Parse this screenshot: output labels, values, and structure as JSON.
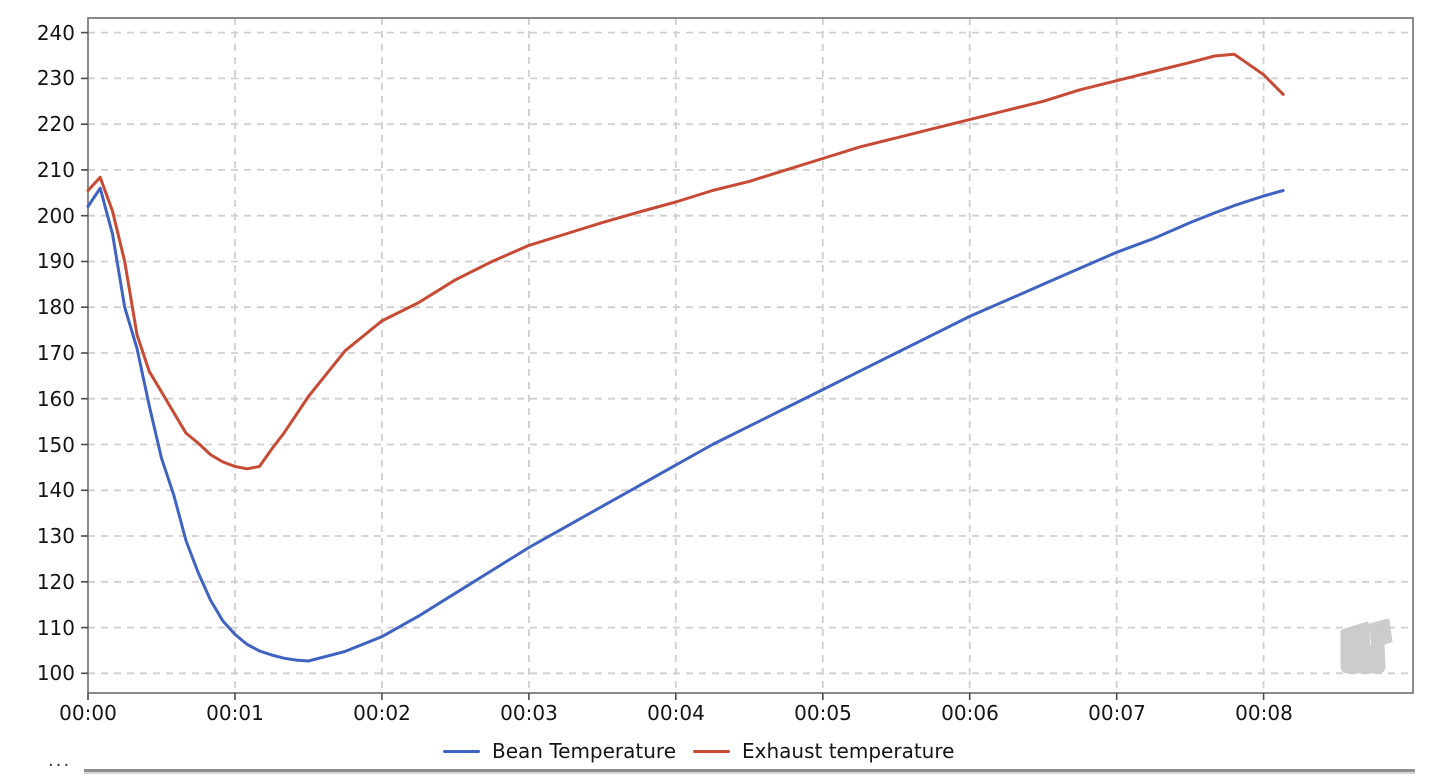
{
  "chart_data": {
    "type": "line",
    "title": "",
    "xlabel": "",
    "ylabel": "",
    "x_tick_format": "mm:ss",
    "grid": "dashed-both-axes",
    "legend_position": "bottom-center",
    "xlim_seconds": [
      0,
      541
    ],
    "ylim": [
      95.7,
      243.2
    ],
    "y_ticks": [
      100,
      110,
      120,
      130,
      140,
      150,
      160,
      170,
      180,
      190,
      200,
      210,
      220,
      230,
      240
    ],
    "x_ticks": [
      {
        "seconds": 0,
        "label": "00:00"
      },
      {
        "seconds": 60,
        "label": "00:01"
      },
      {
        "seconds": 120,
        "label": "00:02"
      },
      {
        "seconds": 180,
        "label": "00:03"
      },
      {
        "seconds": 240,
        "label": "00:04"
      },
      {
        "seconds": 300,
        "label": "00:05"
      },
      {
        "seconds": 360,
        "label": "00:06"
      },
      {
        "seconds": 420,
        "label": "00:07"
      },
      {
        "seconds": 480,
        "label": "00:08"
      }
    ],
    "x_seconds": [
      0,
      5,
      10,
      15,
      20,
      25,
      30,
      35,
      40,
      45,
      50,
      55,
      60,
      65,
      70,
      75,
      80,
      85,
      90,
      105,
      120,
      135,
      150,
      165,
      180,
      195,
      210,
      225,
      240,
      255,
      270,
      285,
      300,
      315,
      330,
      345,
      360,
      375,
      390,
      405,
      420,
      435,
      450,
      460,
      468,
      480,
      488
    ],
    "series": [
      {
        "name": "Bean Temperature",
        "color": "#3F63C1",
        "values": [
          202,
          206,
          196,
          180,
          171,
          158.5,
          147,
          139,
          129,
          122,
          116,
          111.5,
          108.5,
          106.3,
          104.9,
          104,
          103.3,
          102.9,
          102.7,
          104.8,
          108,
          112.5,
          117.5,
          122.5,
          127.5,
          132,
          136.5,
          141,
          145.5,
          150,
          154,
          158,
          162,
          166,
          170,
          174,
          178,
          181.5,
          185,
          188.5,
          192,
          195,
          198.5,
          200.6,
          202.2,
          204.3,
          205.5
        ]
      },
      {
        "name": "Exhaust temperature",
        "color": "#C74B34",
        "values": [
          205.5,
          208.4,
          201,
          190,
          174,
          166,
          161.5,
          157,
          152.5,
          150.3,
          147.8,
          146.2,
          145.2,
          144.7,
          145.2,
          149,
          152.5,
          156.5,
          160.5,
          170.5,
          177,
          181,
          186,
          190,
          193.5,
          196,
          198.5,
          200.8,
          203,
          205.5,
          207.5,
          210,
          212.5,
          215,
          217,
          219,
          221,
          223,
          225,
          227.5,
          229.5,
          231.5,
          233.5,
          234.9,
          235.3,
          230.8,
          226.5
        ]
      }
    ]
  },
  "style": {
    "background": "#ffffff",
    "grid_color": "#CFCFCF",
    "spine_color": "#7E7E7E",
    "tick_color": "#4A4A4A",
    "label_color": "#151515",
    "watermark_color": "#C7C7C7",
    "divider_color": "#8F8F8F"
  },
  "watermark": {
    "icon": "artisan-logo-icon"
  },
  "footer": {
    "ellipsis": "···"
  }
}
